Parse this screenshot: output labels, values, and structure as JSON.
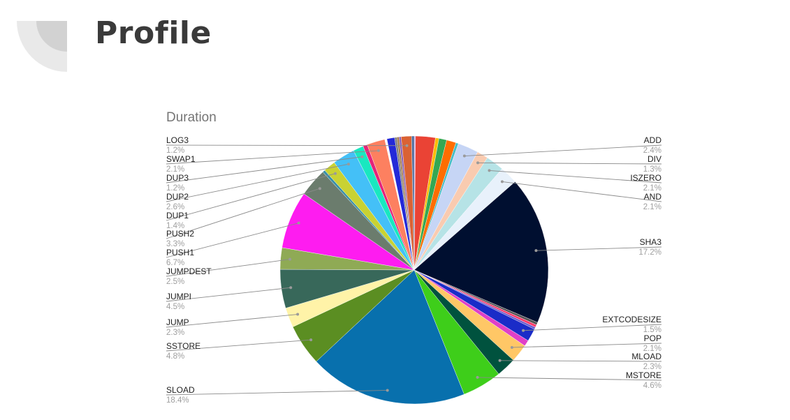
{
  "page": {
    "title": "Profile"
  },
  "chart_data": {
    "type": "pie",
    "title": "Duration",
    "legend": "labels with leader lines",
    "start": "top",
    "direction": "clockwise",
    "slices": [
      {
        "name": "",
        "value": 0.15,
        "color": "#c9a0dc"
      },
      {
        "name": "",
        "value": 2.3,
        "color": "#ea4335"
      },
      {
        "name": "",
        "value": 0.4,
        "color": "#fbbc04"
      },
      {
        "name": "",
        "value": 0.9,
        "color": "#34a853"
      },
      {
        "name": "",
        "value": 1.1,
        "color": "#ff6d01"
      },
      {
        "name": "",
        "value": 0.3,
        "color": "#46bdc6"
      },
      {
        "name": "ADD",
        "value": 2.4,
        "color": "#c6d5f5",
        "label": "ADD",
        "pct": "2.4%"
      },
      {
        "name": "DIV",
        "value": 1.3,
        "color": "#f9cbb0",
        "label": "DIV",
        "pct": "1.3%"
      },
      {
        "name": "ISZERO",
        "value": 2.1,
        "color": "#b6e3e6",
        "label": "ISZERO",
        "pct": "2.1%"
      },
      {
        "name": "AND",
        "value": 2.1,
        "color": "#e8f1fb",
        "label": "AND",
        "pct": "2.1%"
      },
      {
        "name": "SHA3",
        "value": 17.2,
        "color": "#000f30",
        "label": "SHA3",
        "pct": "17.2%"
      },
      {
        "name": "",
        "value": 0.3,
        "color": "#555555"
      },
      {
        "name": "",
        "value": 0.3,
        "color": "#ff3b6b"
      },
      {
        "name": "",
        "value": 0.25,
        "color": "#6a5acd"
      },
      {
        "name": "EXTCODESIZE",
        "value": 1.5,
        "color": "#1a2cc8",
        "label": "EXTCODESIZE",
        "pct": "1.5%"
      },
      {
        "name": "",
        "value": 0.7,
        "color": "#e040c8"
      },
      {
        "name": "POP",
        "value": 2.1,
        "color": "#ffc766",
        "label": "POP",
        "pct": "2.1%"
      },
      {
        "name": "MLOAD",
        "value": 2.3,
        "color": "#00523e",
        "label": "MLOAD",
        "pct": "2.3%"
      },
      {
        "name": "MSTORE",
        "value": 4.6,
        "color": "#3ece1a",
        "label": "MSTORE",
        "pct": "4.6%"
      },
      {
        "name": "SLOAD",
        "value": 18.4,
        "color": "#0870ad",
        "label": "SLOAD",
        "pct": "18.4%"
      },
      {
        "name": "SSTORE",
        "value": 4.8,
        "color": "#5b8e22",
        "label": "SSTORE",
        "pct": "4.8%"
      },
      {
        "name": "JUMP",
        "value": 2.3,
        "color": "#fff3a8",
        "label": "JUMP",
        "pct": "2.3%"
      },
      {
        "name": "JUMPI",
        "value": 4.5,
        "color": "#38685a",
        "label": "JUMPI",
        "pct": "4.5%"
      },
      {
        "name": "JUMPDEST",
        "value": 2.5,
        "color": "#8faa55",
        "label": "JUMPDEST",
        "pct": "2.5%"
      },
      {
        "name": "PUSH1",
        "value": 6.7,
        "color": "#fe1cf0",
        "label": "PUSH1",
        "pct": "6.7%"
      },
      {
        "name": "PUSH2",
        "value": 3.3,
        "color": "#6b7c6d",
        "label": "PUSH2",
        "pct": "3.3%"
      },
      {
        "name": "",
        "value": 0.3,
        "color": "#3a8fa8"
      },
      {
        "name": "DUP1",
        "value": 1.4,
        "color": "#c9d233",
        "label": "DUP1",
        "pct": "1.4%"
      },
      {
        "name": "DUP2",
        "value": 2.6,
        "color": "#44c0f7",
        "label": "DUP2",
        "pct": "2.6%"
      },
      {
        "name": "DUP3",
        "value": 1.2,
        "color": "#19e8c0",
        "label": "DUP3",
        "pct": "1.2%"
      },
      {
        "name": "",
        "value": 0.5,
        "color": "#e4247a"
      },
      {
        "name": "SWAP1",
        "value": 2.1,
        "color": "#fd8060",
        "label": "SWAP1",
        "pct": "2.1%"
      },
      {
        "name": "",
        "value": 0.25,
        "color": "#ffffff"
      },
      {
        "name": "",
        "value": 0.9,
        "color": "#2329d8"
      },
      {
        "name": "",
        "value": 0.25,
        "color": "#7d7d7d"
      },
      {
        "name": "",
        "value": 0.25,
        "color": "#a47c4c"
      },
      {
        "name": "",
        "value": 0.25,
        "color": "#8a5fb5"
      },
      {
        "name": "LOG3",
        "value": 1.2,
        "color": "#da6234",
        "label": "LOG3",
        "pct": "1.2%"
      },
      {
        "name": "",
        "value": 0.3,
        "color": "#4e6e9e"
      }
    ]
  }
}
